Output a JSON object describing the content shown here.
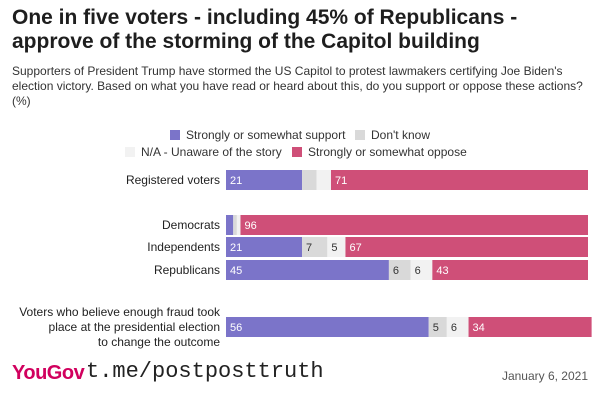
{
  "title": "One in five voters - including 45% of Republicans - approve of the storming of the Capitol building",
  "subtitle": "Supporters of President Trump have stormed the US Capitol to protest lawmakers certifying Joe Biden's election victory. Based on what you have read or heard about this, do you support or oppose these actions? (%)",
  "footer": {
    "logo": "YouGov",
    "watermark": "t.me/postposttruth",
    "date": "January 6, 2021"
  },
  "chart_data": {
    "type": "bar",
    "stacked": true,
    "orientation": "horizontal",
    "categories": [
      "Registered voters",
      "Democrats",
      "Independents",
      "Republicans",
      "Voters who believe enough fraud took place at the presidential election to change the outcome"
    ],
    "series": [
      {
        "name": "Strongly or somewhat support",
        "color": "#7b74c9",
        "values": [
          21,
          2,
          21,
          45,
          56
        ]
      },
      {
        "name": "Don't know",
        "color": "#d9d9d9",
        "values": [
          4,
          1,
          7,
          6,
          5
        ]
      },
      {
        "name": "N/A - Unaware of the story",
        "color": "#f2f2f2",
        "values": [
          4,
          1,
          5,
          6,
          6
        ]
      },
      {
        "name": "Strongly or somewhat oppose",
        "color": "#cf4f78",
        "values": [
          71,
          96,
          67,
          43,
          34
        ]
      }
    ],
    "data_labels": [
      [
        "21",
        "",
        "",
        "71"
      ],
      [
        "",
        "",
        "",
        "96"
      ],
      [
        "21",
        "7",
        "5",
        "67"
      ],
      [
        "45",
        "6",
        "6",
        "43"
      ],
      [
        "56",
        "5",
        "6",
        "34"
      ]
    ],
    "xlim": [
      0,
      100
    ],
    "legend_position": "top"
  }
}
